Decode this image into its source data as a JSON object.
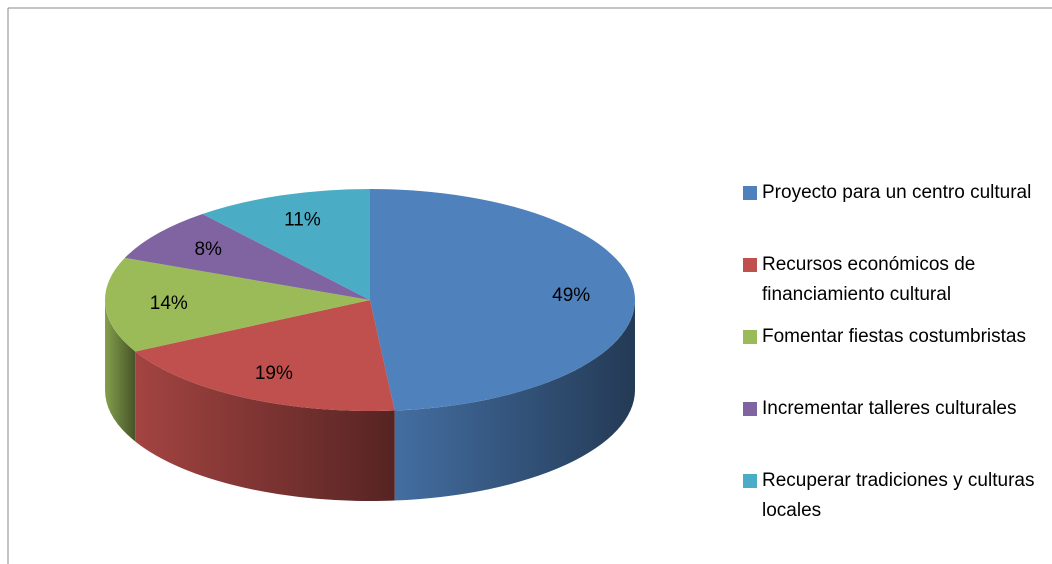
{
  "chart_data": {
    "type": "pie",
    "categories": [
      "Proyecto para un centro cultural",
      "Recursos económicos de financiamiento cultural",
      "Fomentar fiestas costumbristas",
      "Incrementar talleres culturales",
      "Recuperar tradiciones y culturas locales"
    ],
    "values": [
      49,
      19,
      14,
      8,
      11
    ],
    "value_labels": [
      "49%",
      "19%",
      "14%",
      "8%",
      "11%"
    ],
    "colors": [
      "#4f81bd",
      "#c0504d",
      "#9bbb59",
      "#8064a2",
      "#4bacc6"
    ],
    "legend": "right"
  }
}
